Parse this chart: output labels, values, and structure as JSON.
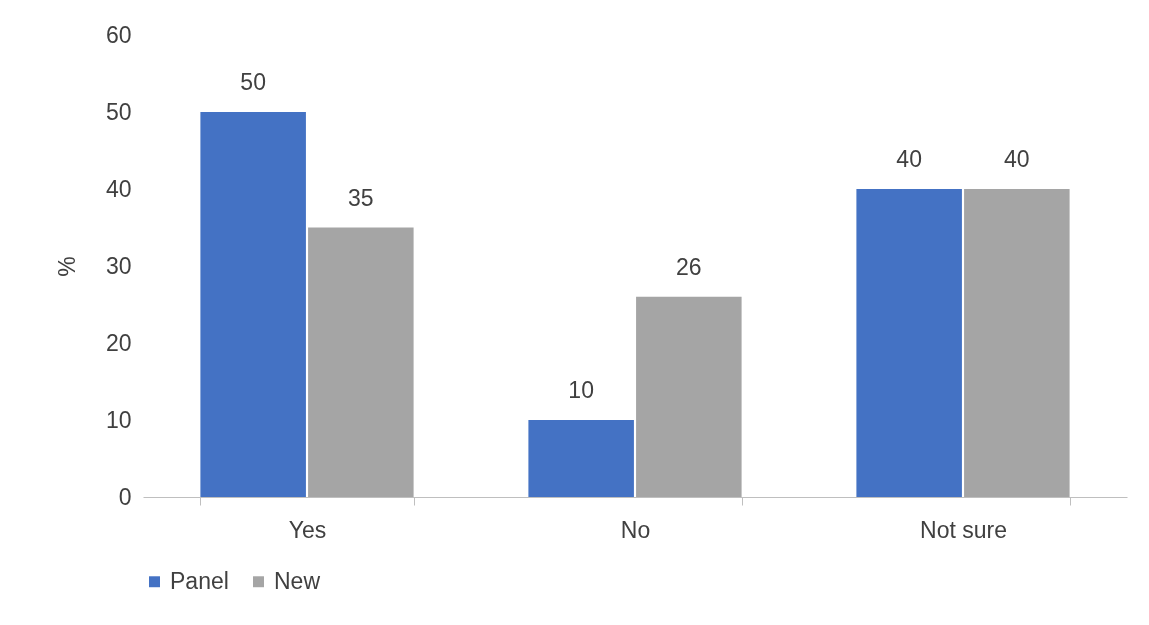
{
  "chart_data": {
    "type": "bar",
    "ylabel": "%",
    "categories": [
      "Yes",
      "No",
      "Not sure"
    ],
    "series": [
      {
        "name": "Panel",
        "color": "#4472c4",
        "values": [
          50,
          10,
          40
        ]
      },
      {
        "name": "New",
        "color": "#a5a5a5",
        "values": [
          35,
          26,
          40
        ]
      }
    ],
    "ylim": [
      0,
      60
    ],
    "yticks": [
      0,
      10,
      20,
      30,
      40,
      50,
      60
    ],
    "grid": false,
    "legend": "bottom",
    "data_labels": true
  }
}
